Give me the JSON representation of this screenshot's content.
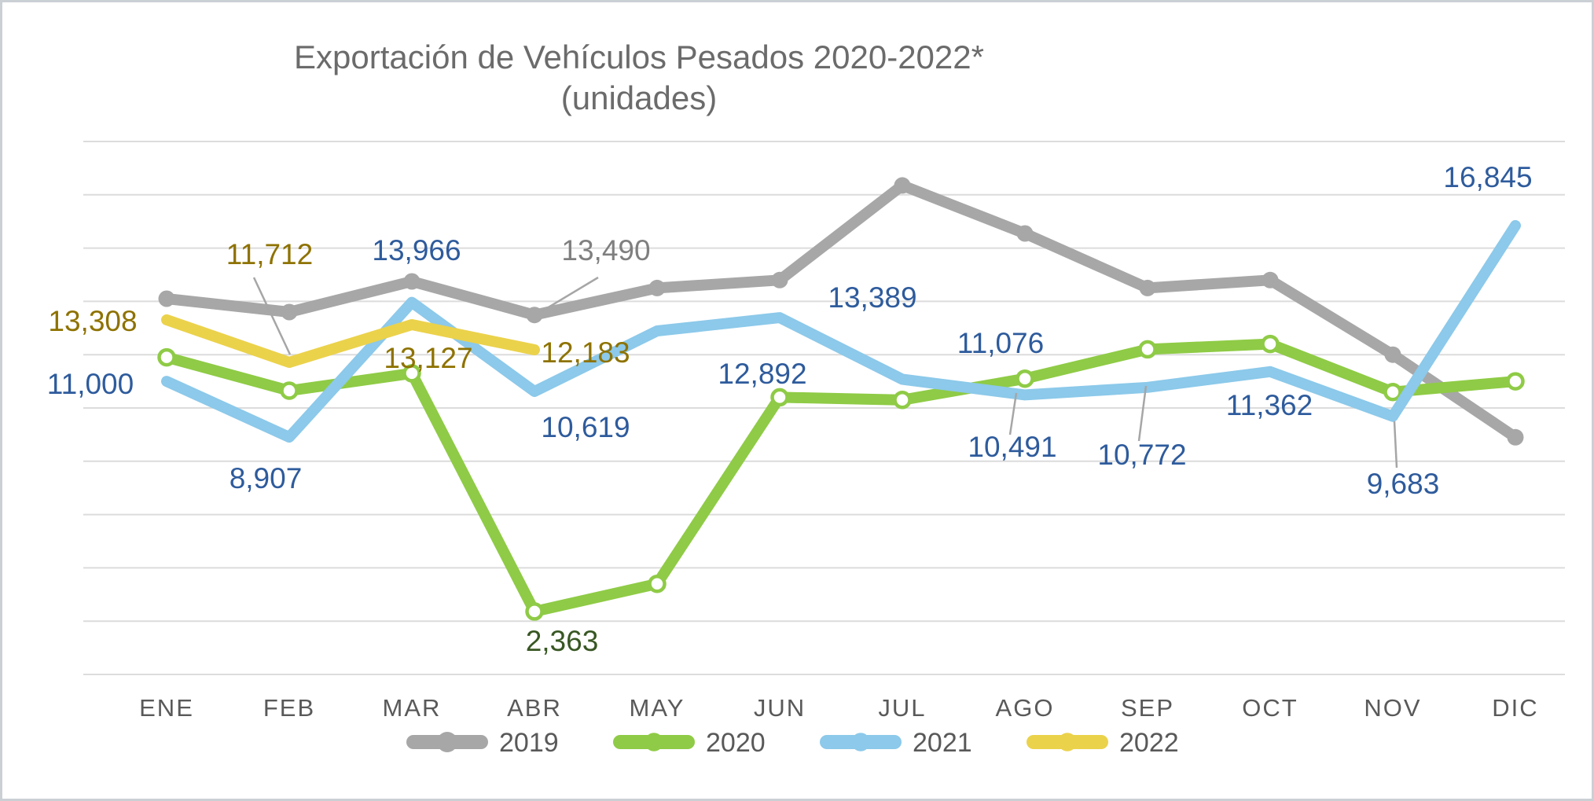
{
  "window": {
    "background": "#FFFFFF",
    "frame_border_color": "#CBD0D5"
  },
  "chart_data": {
    "type": "line",
    "title": "Exportación de Vehículos Pesados 2020-2022*",
    "subtitle": "(unidades)",
    "title_color": "#6B6B6B",
    "categories": [
      "ENE",
      "FEB",
      "MAR",
      "ABR",
      "MAY",
      "JUN",
      "JUL",
      "AGO",
      "SEP",
      "OCT",
      "NOV",
      "DIC"
    ],
    "ylim": [
      0,
      20000
    ],
    "gridline_interval": 2000,
    "grid_on": true,
    "grid_color": "#DCDCDC",
    "axis_label_color": "#595959",
    "leader_line_color": "#A6A6A6",
    "legend_position": "bottom",
    "series": [
      {
        "name": "2019",
        "color": "#A7A7A7",
        "label_color": "#7F7F7F",
        "marker": "filled-circle",
        "values": [
          14100,
          13600,
          14750,
          13490,
          14500,
          14800,
          18350,
          16550,
          14500,
          14800,
          12000,
          8900
        ],
        "data_labels": {
          "ABR": "13,490"
        }
      },
      {
        "name": "2020",
        "color": "#8FCB46",
        "label_color": "#385723",
        "marker": "open-circle",
        "values": [
          11900,
          10650,
          11300,
          2363,
          3400,
          10400,
          10300,
          11100,
          12200,
          12400,
          10600,
          11000
        ],
        "data_labels": {
          "ABR": "2,363"
        }
      },
      {
        "name": "2021",
        "color": "#8CC9EA",
        "label_color": "#2E5B9C",
        "marker": "none",
        "values": [
          11000,
          8907,
          13966,
          10619,
          12892,
          13389,
          11076,
          10491,
          10772,
          11362,
          9683,
          16845
        ],
        "data_labels": {
          "ENE": "11,000",
          "FEB": "8,907",
          "MAR": "13,966",
          "ABR": "10,619",
          "MAY": "12,892",
          "JUN": "13,389",
          "JUL": "11,076",
          "AGO": "10,491",
          "SEP": "10,772",
          "OCT": "11,362",
          "NOV": "9,683",
          "DIC": "16,845"
        }
      },
      {
        "name": "2022",
        "color": "#EBD24B",
        "label_color": "#8E7200",
        "marker": "none",
        "values": [
          13308,
          11712,
          13127,
          12183
        ],
        "data_labels": {
          "ENE": "13,308",
          "FEB": "11,712",
          "MAR": "13,127",
          "ABR": "12,183"
        }
      }
    ]
  }
}
